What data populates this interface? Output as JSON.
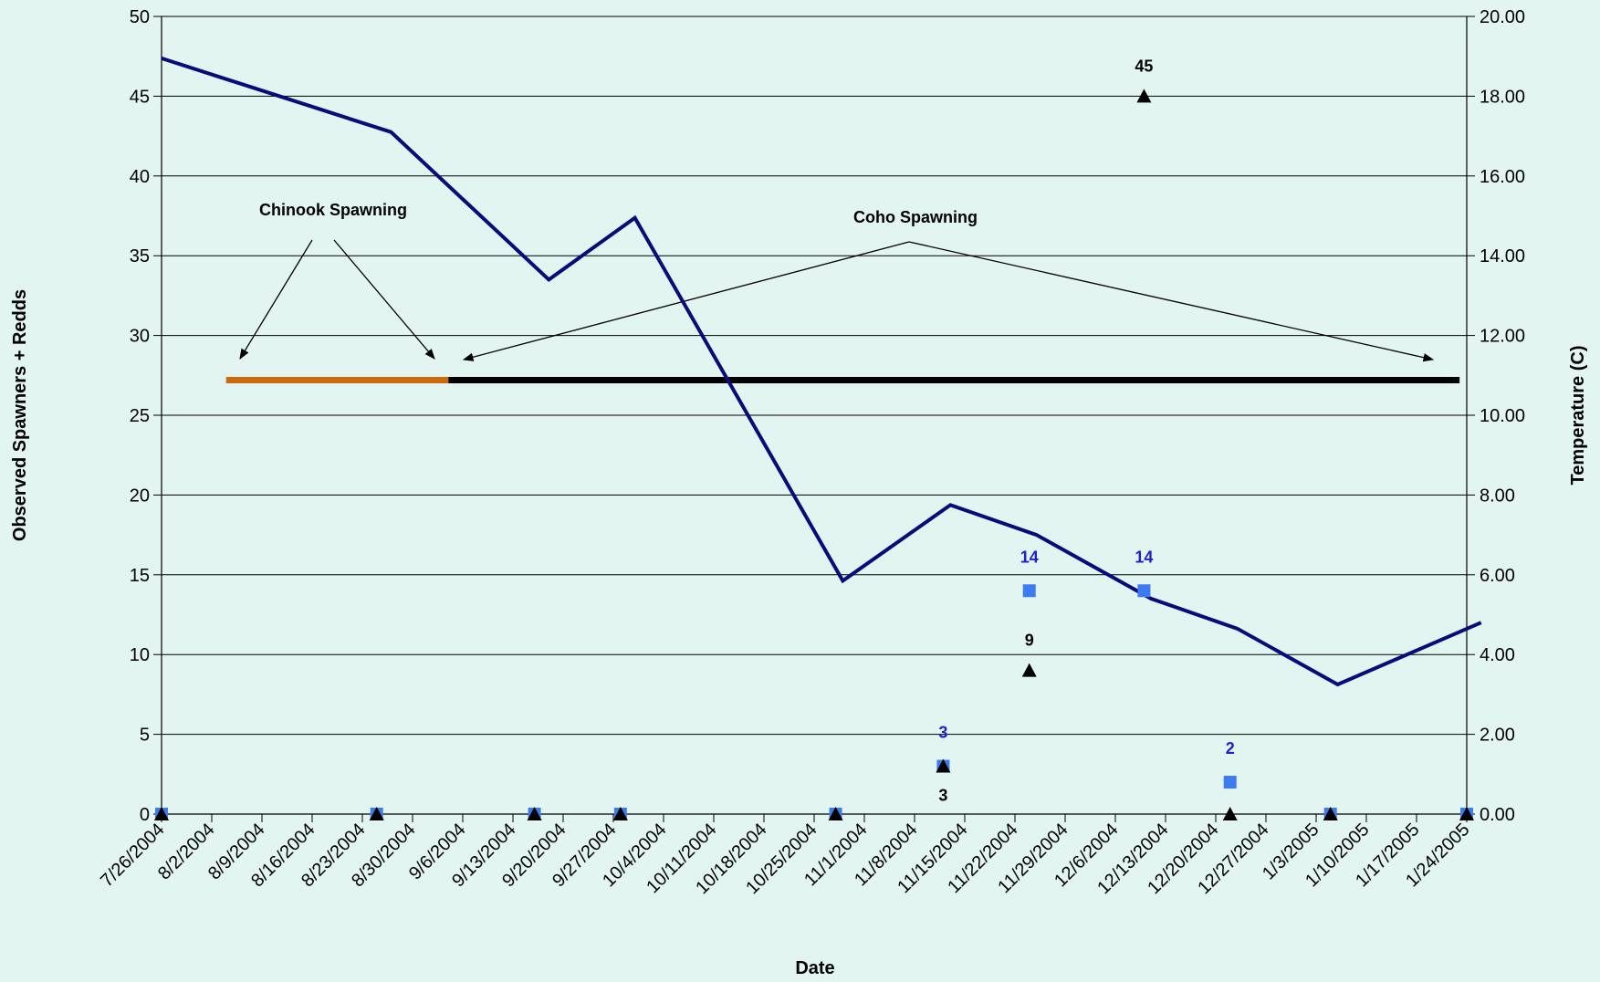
{
  "chart_data": {
    "type": "line",
    "title": "",
    "xlabel": "Date",
    "ylabel": "Observed Spawners + Redds",
    "y2label": "Temperature (C)",
    "ylim": [
      0,
      50
    ],
    "y2lim": [
      0,
      20
    ],
    "grid": "horizontal",
    "x_ticks": [
      "7/26/2004",
      "8/2/2004",
      "8/9/2004",
      "8/16/2004",
      "8/23/2004",
      "8/30/2004",
      "9/6/2004",
      "9/13/2004",
      "9/20/2004",
      "9/27/2004",
      "10/4/2004",
      "10/11/2004",
      "10/18/2004",
      "10/25/2004",
      "11/1/2004",
      "11/8/2004",
      "11/15/2004",
      "11/22/2004",
      "11/29/2004",
      "12/6/2004",
      "12/13/2004",
      "12/20/2004",
      "12/27/2004",
      "1/3/2005",
      "1/10/2005",
      "1/17/2005",
      "1/24/2005"
    ],
    "y_ticks": [
      "0",
      "5",
      "10",
      "15",
      "20",
      "25",
      "30",
      "35",
      "40",
      "45",
      "50"
    ],
    "y2_ticks": [
      "0.00",
      "2.00",
      "4.00",
      "6.00",
      "8.00",
      "10.00",
      "12.00",
      "14.00",
      "16.00",
      "18.00",
      "20.00"
    ],
    "series": [
      {
        "axis": "right",
        "color": "#0a0a7a",
        "points": [
          {
            "x": "7/26/2004",
            "y": 18.95
          },
          {
            "x": "8/27/2004",
            "y": 17.1
          },
          {
            "x": "9/18/2004",
            "y": 13.4
          },
          {
            "x": "9/30/2004",
            "y": 14.95
          },
          {
            "x": "10/29/2004",
            "y": 5.85
          },
          {
            "x": "11/13/2004",
            "y": 7.75
          },
          {
            "x": "11/25/2004",
            "y": 7.0
          },
          {
            "x": "12/11/2004",
            "y": 5.4
          },
          {
            "x": "12/23/2004",
            "y": 4.65
          },
          {
            "x": "1/6/2005",
            "y": 3.25
          },
          {
            "x": "1/26/2005",
            "y": 4.8
          }
        ]
      },
      {
        "marker": "square",
        "color": "#3d7bf0",
        "points": [
          {
            "x": "7/26/2004",
            "y": 0,
            "label": ""
          },
          {
            "x": "8/25/2004",
            "y": 0,
            "label": ""
          },
          {
            "x": "9/16/2004",
            "y": 0,
            "label": ""
          },
          {
            "x": "9/28/2004",
            "y": 0,
            "label": ""
          },
          {
            "x": "10/28/2004",
            "y": 0,
            "label": ""
          },
          {
            "x": "11/12/2004",
            "y": 3,
            "label": "3"
          },
          {
            "x": "11/24/2004",
            "y": 14,
            "label": "14"
          },
          {
            "x": "12/10/2004",
            "y": 14,
            "label": "14"
          },
          {
            "x": "12/22/2004",
            "y": 2,
            "label": "2"
          },
          {
            "x": "1/5/2005",
            "y": 0,
            "label": ""
          },
          {
            "x": "1/24/2005",
            "y": 0,
            "label": ""
          }
        ]
      },
      {
        "marker": "triangle",
        "color": "#000000",
        "points": [
          {
            "x": "7/26/2004",
            "y": 0,
            "label": ""
          },
          {
            "x": "8/25/2004",
            "y": 0,
            "label": ""
          },
          {
            "x": "9/16/2004",
            "y": 0,
            "label": ""
          },
          {
            "x": "9/28/2004",
            "y": 0,
            "label": ""
          },
          {
            "x": "10/28/2004",
            "y": 0,
            "label": ""
          },
          {
            "x": "11/12/2004",
            "y": 3,
            "label": "3"
          },
          {
            "x": "11/24/2004",
            "y": 9,
            "label": "9"
          },
          {
            "x": "12/10/2004",
            "y": 45,
            "label": "45"
          },
          {
            "x": "12/22/2004",
            "y": 0,
            "label": ""
          },
          {
            "x": "1/5/2005",
            "y": 0,
            "label": ""
          },
          {
            "x": "1/24/2005",
            "y": 0,
            "label": ""
          }
        ]
      }
    ],
    "spawning_periods": [
      {
        "name": "Chinook Spawning",
        "start": "8/4/2004",
        "end": "9/4/2004",
        "y": 27.2,
        "color": "#cc6a10"
      },
      {
        "name": "Coho Spawning",
        "start": "9/4/2004",
        "end": "1/23/2005",
        "y": 27.2,
        "color": "#000000"
      }
    ]
  }
}
